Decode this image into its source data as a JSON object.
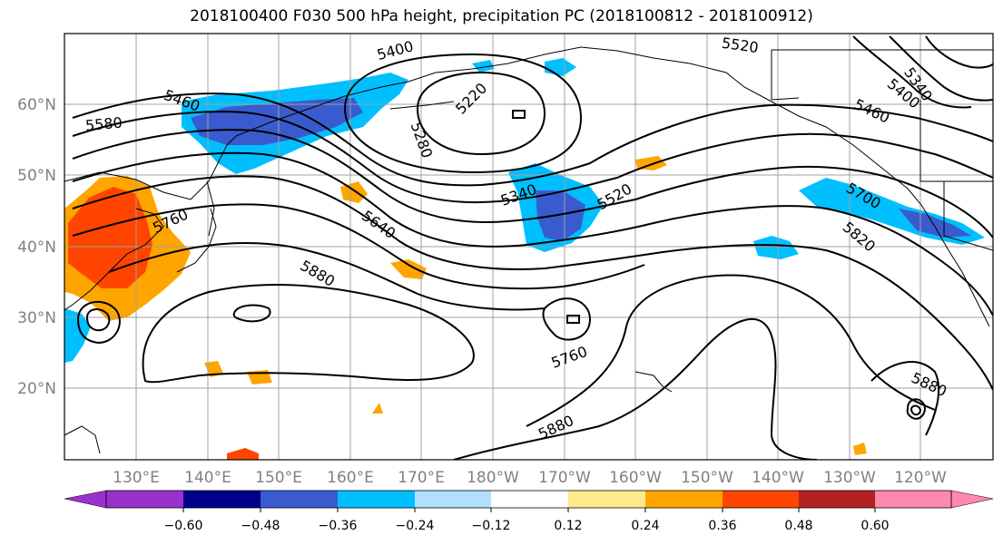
{
  "title": "2018100400 F030 500 hPa height, precipitation PC (2018100812 - 2018100912)",
  "map": {
    "lat_ticks": [
      "60°N",
      "50°N",
      "40°N",
      "30°N",
      "20°N"
    ],
    "lon_ticks": [
      "130°E",
      "140°E",
      "150°E",
      "160°E",
      "170°E",
      "180°W",
      "170°W",
      "160°W",
      "150°W",
      "140°W",
      "130°W",
      "120°W"
    ],
    "contour_labels": [
      "5400",
      "5520",
      "5220",
      "5340",
      "5460",
      "5400",
      "5460",
      "5580",
      "5280",
      "5340",
      "5520",
      "5700",
      "5760",
      "5640",
      "5820",
      "5880",
      "5760",
      "5880",
      "5880"
    ]
  },
  "colorbar": {
    "ticks": [
      "−0.60",
      "−0.48",
      "−0.36",
      "−0.24",
      "−0.12",
      "0.12",
      "0.24",
      "0.36",
      "0.48",
      "0.60"
    ],
    "colors": [
      "#9932cc",
      "#00008b",
      "#3a5bcd",
      "#00bfff",
      "#b0e0fe",
      "#ffffff",
      "#ffe98a",
      "#ffa500",
      "#ff4500",
      "#b22222",
      "#ff88b0"
    ]
  }
}
